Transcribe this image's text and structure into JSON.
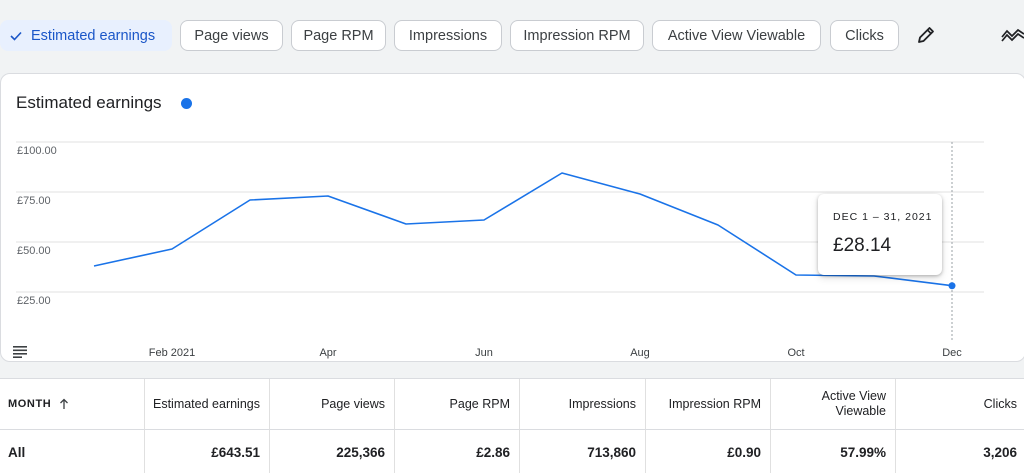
{
  "metric_chips": [
    {
      "label": "Estimated earnings",
      "selected": true
    },
    {
      "label": "Page views",
      "selected": false
    },
    {
      "label": "Page RPM",
      "selected": false
    },
    {
      "label": "Impressions",
      "selected": false
    },
    {
      "label": "Impression RPM",
      "selected": false
    },
    {
      "label": "Active View Viewable",
      "selected": false
    },
    {
      "label": "Clicks",
      "selected": false
    }
  ],
  "icons": {
    "edit": "pencil-icon",
    "compare": "trend-lines-icon",
    "table_toggle": "table-rows-icon",
    "check": "check-icon",
    "sort": "arrow-up-icon"
  },
  "colors": {
    "accent": "#1a73e8",
    "selected_chip_bg": "#e8f0fe",
    "selected_chip_text": "#1a56c8"
  },
  "chart_card": {
    "title": "Estimated earnings"
  },
  "chart_data": {
    "type": "line",
    "series": [
      {
        "values": [
          38.0,
          46.5,
          71.0,
          73.0,
          59.0,
          61.0,
          84.5,
          74.0,
          58.5,
          33.5,
          33.0,
          28.14
        ]
      }
    ],
    "x": [
      "2021-01",
      "2021-02",
      "2021-03",
      "2021-04",
      "2021-05",
      "2021-06",
      "2021-07",
      "2021-08",
      "2021-09",
      "2021-10",
      "2021-11",
      "2021-12"
    ],
    "x_tick_labels": [
      {
        "month_index": 1,
        "label": "Feb 2021"
      },
      {
        "month_index": 3,
        "label": "Apr"
      },
      {
        "month_index": 5,
        "label": "Jun"
      },
      {
        "month_index": 7,
        "label": "Aug"
      },
      {
        "month_index": 9,
        "label": "Oct"
      },
      {
        "month_index": 11,
        "label": "Dec"
      }
    ],
    "y_ticks": [
      {
        "value": 100,
        "label": "£100.00"
      },
      {
        "value": 75,
        "label": "£75.00"
      },
      {
        "value": 50,
        "label": "£50.00"
      },
      {
        "value": 25,
        "label": "£25.00"
      }
    ],
    "ylim": [
      0,
      100
    ],
    "grid": true,
    "highlighted_index": 11
  },
  "tooltip": {
    "date": "DEC 1 – 31, 2021",
    "value": "£28.14"
  },
  "table": {
    "headers": [
      "MONTH",
      "Estimated earnings",
      "Page views",
      "Page RPM",
      "Impressions",
      "Impression RPM",
      "Active View Viewable",
      "Clicks"
    ],
    "active_view_header_lines": [
      "Active View",
      "Viewable"
    ],
    "total_row": [
      "All",
      "£643.51",
      "225,366",
      "£2.86",
      "713,860",
      "£0.90",
      "57.99%",
      "3,206"
    ]
  }
}
